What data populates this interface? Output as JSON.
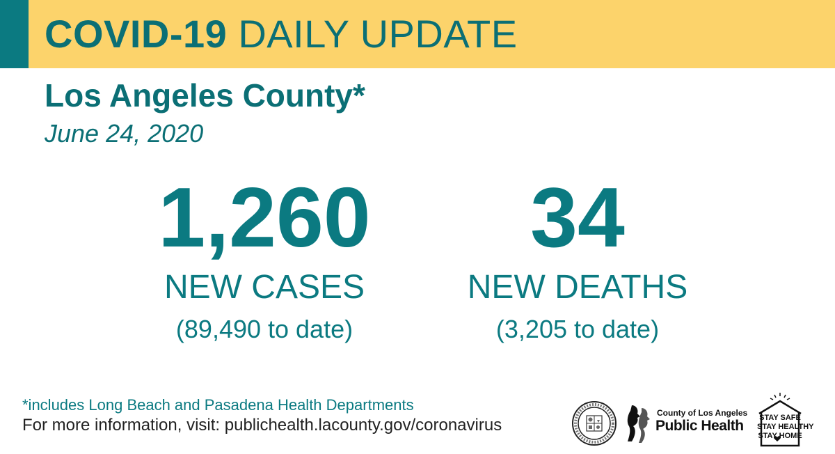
{
  "header": {
    "title_bold": "COVID-19",
    "title_rest": "DAILY UPDATE"
  },
  "county": "Los Angeles County*",
  "date": "June 24, 2020",
  "stats": {
    "cases": {
      "value": "1,260",
      "label": "NEW CASES",
      "to_date": "(89,490 to date)"
    },
    "deaths": {
      "value": "34",
      "label": "NEW DEATHS",
      "to_date": "(3,205 to date)"
    }
  },
  "footer": {
    "footnote": "*includes Long Beach and Pasadena Health Departments",
    "more_info": "For more information, visit: publichealth.lacounty.gov/coronavirus"
  },
  "logos": {
    "ph_small": "County of Los Angeles",
    "ph_big": "Public Health",
    "stay_lines": [
      "STAY SAFE",
      "STAY HEALTHY",
      "STAY HOME"
    ]
  },
  "colors": {
    "banner": "#fcd36b",
    "accent": "#0b7a81",
    "text": "#0b6f75"
  },
  "icons": [
    "county-seal-icon",
    "public-health-profiles-icon",
    "house-icon"
  ]
}
